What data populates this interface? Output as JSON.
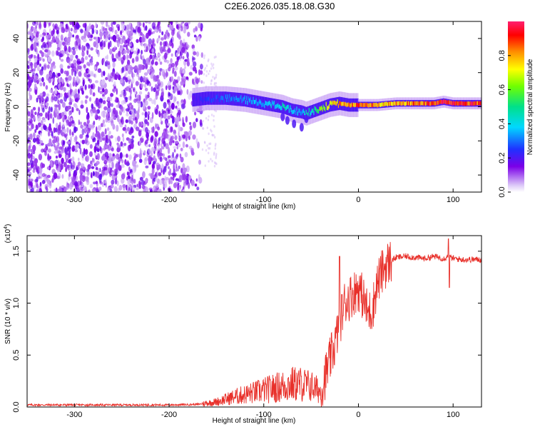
{
  "title": "C2E6.2026.035.18.08.G30",
  "colors": {
    "signal": "#e8302a",
    "speckle": "#7b2cf0"
  },
  "chart_data": [
    {
      "type": "heatmap",
      "xlabel": "Height of straight line (km)",
      "ylabel": "Frequency (Hz)",
      "xlim": [
        -350,
        130
      ],
      "ylim": [
        -50,
        50
      ],
      "xticks": [
        -300,
        -200,
        -100,
        0,
        100
      ],
      "yticks": [
        -40,
        -20,
        0,
        20,
        40
      ],
      "colorbar": {
        "label": "Normalized spectral amplitude",
        "range": [
          0,
          1
        ],
        "ticks": [
          "0.0",
          "0.2",
          "0.4",
          "0.6",
          "0.8"
        ],
        "colormap": "rainbow (purple to red)"
      },
      "noise_region_x": [
        -350,
        -165
      ],
      "ridge": {
        "x": [
          -175,
          -160,
          -140,
          -120,
          -100,
          -90,
          -80,
          -70,
          -60,
          -55,
          -50,
          -45,
          -40,
          -30,
          -20,
          -10,
          0,
          10,
          20,
          40,
          60,
          80,
          90,
          100,
          130
        ],
        "y": [
          4,
          5,
          5,
          4,
          2,
          1,
          0,
          -2,
          -3,
          -4,
          -3,
          -2,
          -1,
          1,
          2,
          1,
          1,
          1,
          1,
          2,
          2,
          2,
          3,
          2,
          2
        ],
        "amplitude": [
          0.2,
          0.25,
          0.3,
          0.35,
          0.35,
          0.4,
          0.45,
          0.4,
          0.35,
          0.5,
          0.45,
          0.5,
          0.6,
          0.7,
          0.8,
          0.85,
          0.9,
          0.85,
          0.8,
          0.8,
          0.85,
          0.9,
          0.95,
          0.95,
          0.9
        ]
      }
    },
    {
      "type": "line",
      "xlabel": "Height of straight line (km)",
      "ylabel": "SNR (10 * v/v)",
      "y_multiplier": "(x10",
      "y_multiplier_exp": "4",
      "xlim": [
        -350,
        130
      ],
      "ylim": [
        0,
        1.65
      ],
      "xticks": [
        -300,
        -200,
        -100,
        0,
        100
      ],
      "yticks": [
        "0.0",
        "0.5",
        "1.0",
        "1.5"
      ],
      "series": [
        {
          "x": [
            -350,
            -300,
            -250,
            -200,
            -170,
            -150,
            -130,
            -110,
            -90,
            -80,
            -70,
            -60,
            -50,
            -40,
            -35,
            -30,
            -25,
            -20,
            -15,
            -10,
            -5,
            0,
            5,
            10,
            15,
            20,
            25,
            30,
            40,
            50,
            60,
            70,
            80,
            90,
            95,
            100,
            110,
            120,
            130
          ],
          "y": [
            0.02,
            0.02,
            0.02,
            0.02,
            0.025,
            0.05,
            0.1,
            0.14,
            0.18,
            0.2,
            0.22,
            0.22,
            0.2,
            0.15,
            0.3,
            0.45,
            0.6,
            0.8,
            1.0,
            1.05,
            1.1,
            1.15,
            1.05,
            0.9,
            0.95,
            1.2,
            1.3,
            1.38,
            1.44,
            1.45,
            1.44,
            1.43,
            1.45,
            1.43,
            1.45,
            1.43,
            1.42,
            1.42,
            1.42
          ]
        }
      ]
    }
  ]
}
